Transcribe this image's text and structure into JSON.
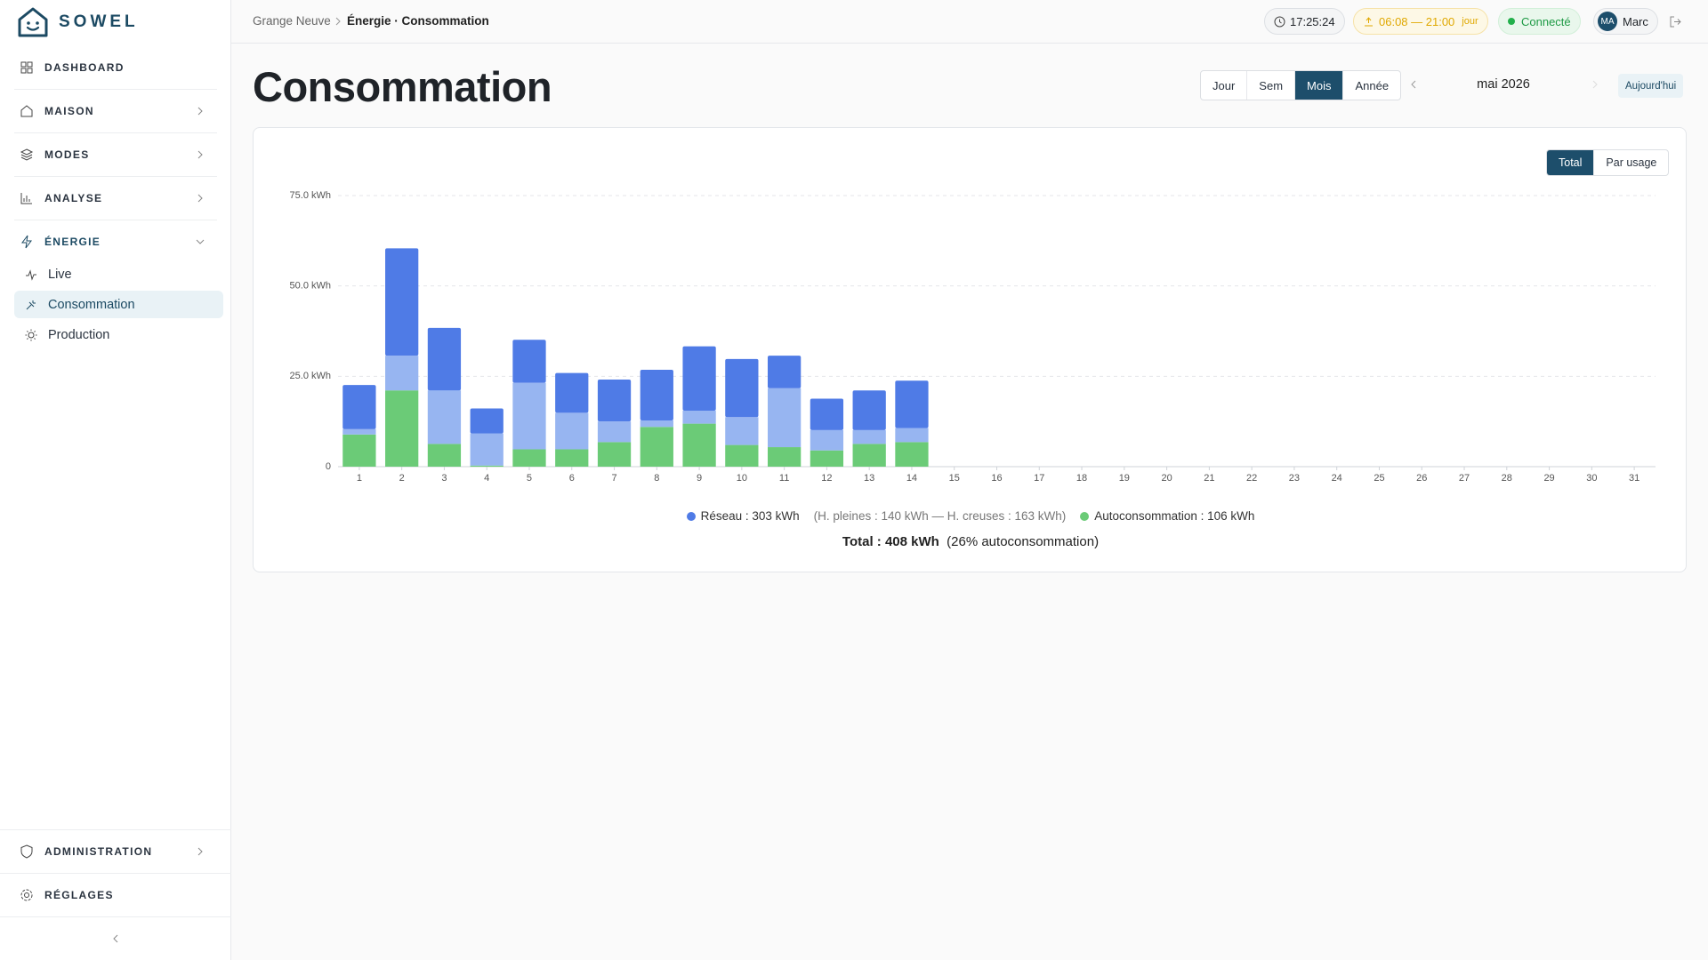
{
  "sidebar": {
    "brand": "SOWEL",
    "nav": [
      "DASHBOARD",
      "MAISON",
      "MODES",
      "ANALYSE",
      "ÉNERGIE"
    ],
    "energy_items": [
      "Live",
      "Consommation",
      "Production"
    ],
    "bottom_nav": [
      "ADMINISTRATION",
      "RÉGLAGES"
    ]
  },
  "header": {
    "breadcrumb": [
      "Grange Neuve",
      "Énergie · Consommation"
    ],
    "clock": "17:25:24",
    "daylight": "06:08 — 21:00",
    "daylight_tag": "jour",
    "status": "Connecté",
    "avatar": "MA",
    "user": "Marc"
  },
  "page": {
    "title": "Consommation",
    "periods": [
      "Jour",
      "Sem",
      "Mois",
      "Année"
    ],
    "current_period": "mai 2026",
    "today": "Aujourd'hui",
    "views": [
      "Total",
      "Par usage"
    ]
  },
  "chart_data": {
    "type": "stacked_bar",
    "categories": [
      "1",
      "2",
      "3",
      "4",
      "5",
      "6",
      "7",
      "8",
      "9",
      "10",
      "11",
      "12",
      "13",
      "14",
      "15",
      "16",
      "17",
      "18",
      "19",
      "20",
      "21",
      "22",
      "23",
      "24",
      "25",
      "26",
      "27",
      "28",
      "29",
      "30",
      "31"
    ],
    "series": [
      {
        "color": "#6bcb77",
        "values": [
          8.9,
          21.1,
          6.3,
          0.3,
          4.8,
          4.8,
          6.8,
          11.0,
          11.9,
          6.0,
          5.4,
          4.5,
          6.3,
          6.8,
          null,
          null,
          null,
          null,
          null,
          null,
          null,
          null,
          null,
          null,
          null,
          null,
          null,
          null,
          null,
          null,
          null
        ]
      },
      {
        "color": "#97b5f1",
        "values": [
          1.5,
          9.6,
          14.8,
          8.9,
          18.4,
          10.1,
          5.7,
          1.8,
          3.6,
          7.7,
          16.3,
          5.6,
          3.8,
          3.9,
          null,
          null,
          null,
          null,
          null,
          null,
          null,
          null,
          null,
          null,
          null,
          null,
          null,
          null,
          null,
          null,
          null
        ]
      },
      {
        "color": "#4f7be6",
        "values": [
          12.2,
          29.7,
          17.3,
          6.9,
          11.9,
          11.0,
          11.6,
          14.0,
          17.8,
          16.1,
          9.0,
          8.7,
          11.0,
          13.1,
          null,
          null,
          null,
          null,
          null,
          null,
          null,
          null,
          null,
          null,
          null,
          null,
          null,
          null,
          null,
          null,
          null
        ]
      }
    ],
    "ylim": [
      0,
      75
    ],
    "yticks": [
      0,
      {
        "value": 25,
        "label": "25.0 kWh"
      },
      {
        "value": 50,
        "label": "50.0 kWh"
      },
      {
        "value": 75,
        "label": "75.0 kWh"
      }
    ],
    "grid": true,
    "legend": [
      {
        "label": "Réseau : 303 kWh",
        "color": "#4f7be6"
      },
      {
        "label": "(H. pleines : 140 kWh — H. creuses : 163 kWh)"
      },
      {
        "label": "Autoconsommation : 106 kWh",
        "color": "#6bcb77"
      }
    ],
    "total": "Total : 408 kWh",
    "total_note": "(26% autoconsommation)"
  }
}
